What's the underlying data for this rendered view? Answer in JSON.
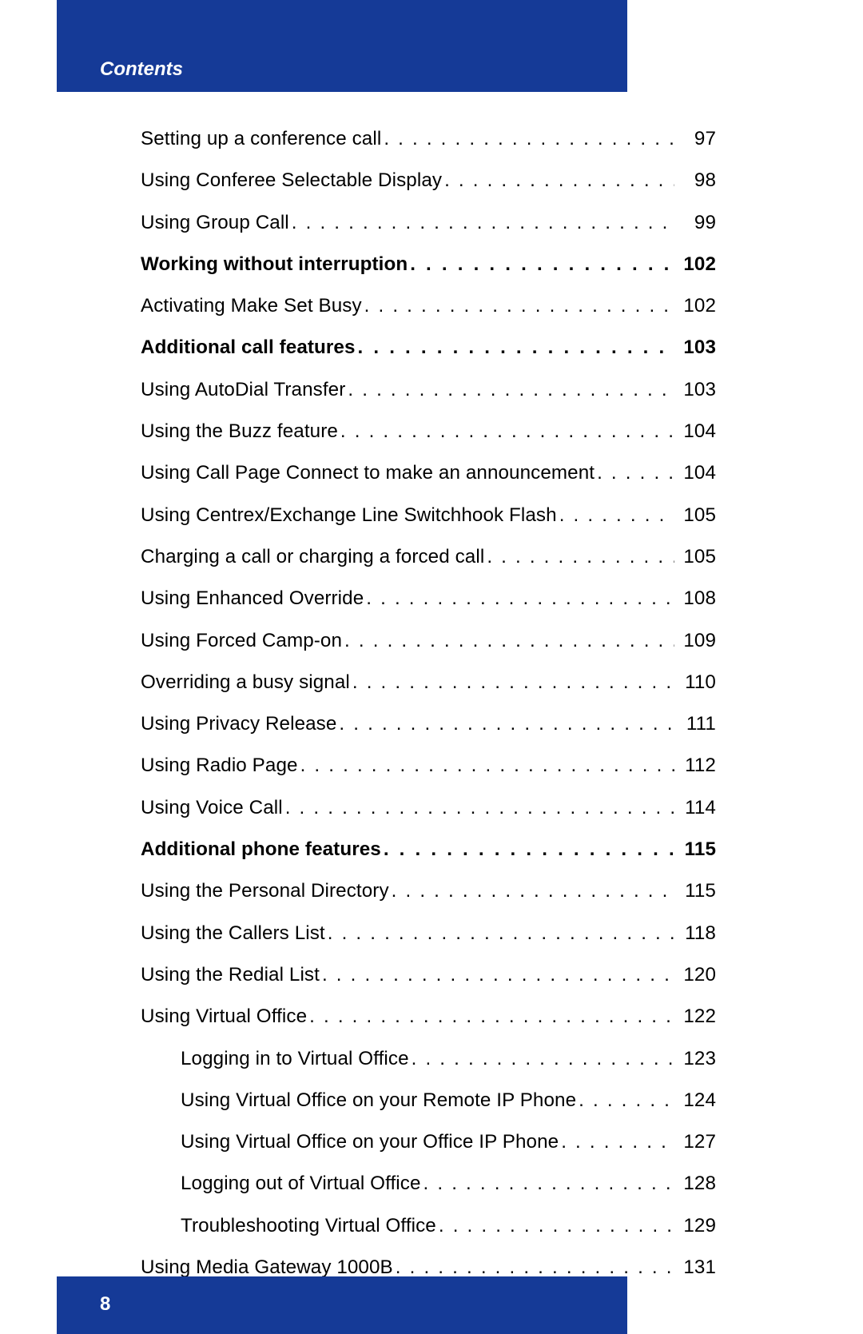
{
  "header": {
    "label": "Contents"
  },
  "footer": {
    "page_number": "8"
  },
  "colors": {
    "band": "#153a97",
    "band_text": "#ffffff",
    "body_text": "#000000",
    "background": "#ffffff"
  },
  "toc": {
    "entries": [
      {
        "label": "Setting up a conference call",
        "page": "97",
        "bold": false,
        "indent": 0,
        "section": false
      },
      {
        "label": "Using Conferee Selectable Display",
        "page": "98",
        "bold": false,
        "indent": 0,
        "section": false
      },
      {
        "label": "Using Group Call",
        "page": "99",
        "bold": false,
        "indent": 0,
        "section": false
      },
      {
        "label": "Working without interruption",
        "page": "102",
        "bold": true,
        "indent": 0,
        "section": true
      },
      {
        "label": "Activating Make Set Busy",
        "page": "102",
        "bold": false,
        "indent": 0,
        "section": false
      },
      {
        "label": "Additional call features",
        "page": "103",
        "bold": true,
        "indent": 0,
        "section": true
      },
      {
        "label": "Using AutoDial Transfer",
        "page": "103",
        "bold": false,
        "indent": 0,
        "section": false
      },
      {
        "label": "Using the Buzz feature",
        "page": "104",
        "bold": false,
        "indent": 0,
        "section": false
      },
      {
        "label": "Using Call Page Connect to make an announcement",
        "page": "104",
        "bold": false,
        "indent": 0,
        "section": false
      },
      {
        "label": "Using Centrex/Exchange Line Switchhook Flash",
        "page": "105",
        "bold": false,
        "indent": 0,
        "section": false
      },
      {
        "label": "Charging a call or charging a forced call",
        "page": "105",
        "bold": false,
        "indent": 0,
        "section": false
      },
      {
        "label": "Using Enhanced Override",
        "page": "108",
        "bold": false,
        "indent": 0,
        "section": false
      },
      {
        "label": "Using Forced Camp-on",
        "page": "109",
        "bold": false,
        "indent": 0,
        "section": false
      },
      {
        "label": "Overriding a busy signal",
        "page": "110",
        "bold": false,
        "indent": 0,
        "section": false
      },
      {
        "label": "Using Privacy Release",
        "page": "111",
        "bold": false,
        "indent": 0,
        "section": false
      },
      {
        "label": "Using Radio Page",
        "page": "112",
        "bold": false,
        "indent": 0,
        "section": false
      },
      {
        "label": "Using Voice Call",
        "page": "114",
        "bold": false,
        "indent": 0,
        "section": false
      },
      {
        "label": "Additional phone features",
        "page": "115",
        "bold": true,
        "indent": 0,
        "section": true
      },
      {
        "label": "Using the Personal Directory",
        "page": "115",
        "bold": false,
        "indent": 0,
        "section": false
      },
      {
        "label": "Using the Callers List",
        "page": "118",
        "bold": false,
        "indent": 0,
        "section": false
      },
      {
        "label": "Using the Redial List",
        "page": "120",
        "bold": false,
        "indent": 0,
        "section": false
      },
      {
        "label": "Using Virtual Office",
        "page": "122",
        "bold": false,
        "indent": 0,
        "section": false
      },
      {
        "label": "Logging in to Virtual Office",
        "page": "123",
        "bold": false,
        "indent": 1,
        "section": false
      },
      {
        "label": "Using Virtual Office on your Remote IP Phone",
        "page": "124",
        "bold": false,
        "indent": 1,
        "section": false
      },
      {
        "label": "Using Virtual Office on your Office IP Phone",
        "page": "127",
        "bold": false,
        "indent": 1,
        "section": false
      },
      {
        "label": "Logging out of Virtual Office",
        "page": "128",
        "bold": false,
        "indent": 1,
        "section": false
      },
      {
        "label": "Troubleshooting Virtual Office",
        "page": "129",
        "bold": false,
        "indent": 1,
        "section": false
      },
      {
        "label": "Using Media Gateway 1000B",
        "page": "131",
        "bold": false,
        "indent": 0,
        "section": false
      }
    ]
  }
}
